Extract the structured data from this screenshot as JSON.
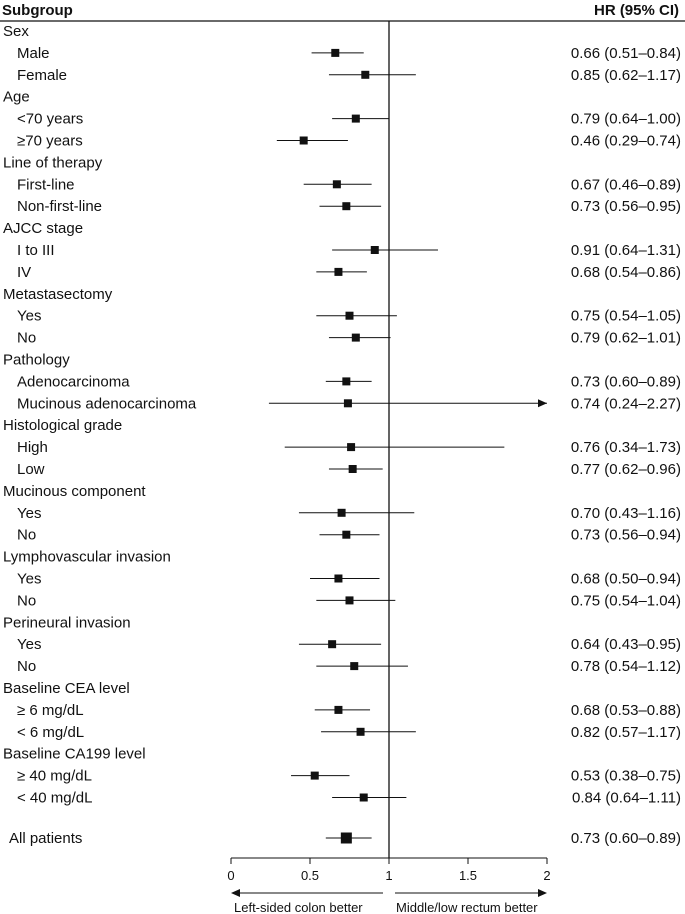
{
  "chart_data": {
    "type": "forest",
    "header": {
      "subgroup": "Subgroup",
      "hr": "HR (95% CI)"
    },
    "x_axis": {
      "min": 0,
      "max": 2,
      "reference": 1,
      "ticks": [
        "0",
        "0.5",
        "1",
        "1.5",
        "2"
      ]
    },
    "direction_labels": {
      "left": "Left-sided colon better",
      "right": "Middle/low rectum better"
    },
    "rows": [
      {
        "kind": "group",
        "label": "Sex"
      },
      {
        "kind": "item",
        "label": "Male",
        "hr": 0.66,
        "lo": 0.51,
        "hi": 0.84,
        "text": "0.66 (0.51–0.84)"
      },
      {
        "kind": "item",
        "label": "Female",
        "hr": 0.85,
        "lo": 0.62,
        "hi": 1.17,
        "text": "0.85 (0.62–1.17)"
      },
      {
        "kind": "group",
        "label": "Age"
      },
      {
        "kind": "item",
        "label": "<70 years",
        "hr": 0.79,
        "lo": 0.64,
        "hi": 1.0,
        "text": "0.79 (0.64–1.00)"
      },
      {
        "kind": "item",
        "label": "≥70 years",
        "hr": 0.46,
        "lo": 0.29,
        "hi": 0.74,
        "text": "0.46 (0.29–0.74)"
      },
      {
        "kind": "group",
        "label": "Line of therapy"
      },
      {
        "kind": "item",
        "label": "First-line",
        "hr": 0.67,
        "lo": 0.46,
        "hi": 0.89,
        "text": "0.67 (0.46–0.89)"
      },
      {
        "kind": "item",
        "label": "Non-first-line",
        "hr": 0.73,
        "lo": 0.56,
        "hi": 0.95,
        "text": "0.73 (0.56–0.95)"
      },
      {
        "kind": "group",
        "label": "AJCC stage"
      },
      {
        "kind": "item",
        "label": "I to III",
        "hr": 0.91,
        "lo": 0.64,
        "hi": 1.31,
        "text": "0.91 (0.64–1.31)"
      },
      {
        "kind": "item",
        "label": "IV",
        "hr": 0.68,
        "lo": 0.54,
        "hi": 0.86,
        "text": "0.68 (0.54–0.86)"
      },
      {
        "kind": "group",
        "label": "Metastasectomy"
      },
      {
        "kind": "item",
        "label": "Yes",
        "hr": 0.75,
        "lo": 0.54,
        "hi": 1.05,
        "text": "0.75 (0.54–1.05)"
      },
      {
        "kind": "item",
        "label": "No",
        "hr": 0.79,
        "lo": 0.62,
        "hi": 1.01,
        "text": "0.79 (0.62–1.01)"
      },
      {
        "kind": "group",
        "label": "Pathology"
      },
      {
        "kind": "item",
        "label": "Adenocarcinoma",
        "hr": 0.73,
        "lo": 0.6,
        "hi": 0.89,
        "text": "0.73 (0.60–0.89)"
      },
      {
        "kind": "item",
        "label": "Mucinous adenocarcinoma",
        "hr": 0.74,
        "lo": 0.24,
        "hi": 2.27,
        "text": "0.74 (0.24–2.27)"
      },
      {
        "kind": "group",
        "label": "Histological grade"
      },
      {
        "kind": "item",
        "label": "High",
        "hr": 0.76,
        "lo": 0.34,
        "hi": 1.73,
        "text": "0.76 (0.34–1.73)"
      },
      {
        "kind": "item",
        "label": "Low",
        "hr": 0.77,
        "lo": 0.62,
        "hi": 0.96,
        "text": "0.77 (0.62–0.96)"
      },
      {
        "kind": "group",
        "label": "Mucinous component"
      },
      {
        "kind": "item",
        "label": "Yes",
        "hr": 0.7,
        "lo": 0.43,
        "hi": 1.16,
        "text": "0.70 (0.43–1.16)"
      },
      {
        "kind": "item",
        "label": "No",
        "hr": 0.73,
        "lo": 0.56,
        "hi": 0.94,
        "text": "0.73 (0.56–0.94)"
      },
      {
        "kind": "group",
        "label": "Lymphovascular invasion"
      },
      {
        "kind": "item",
        "label": "Yes",
        "hr": 0.68,
        "lo": 0.5,
        "hi": 0.94,
        "text": "0.68 (0.50–0.94)"
      },
      {
        "kind": "item",
        "label": "No",
        "hr": 0.75,
        "lo": 0.54,
        "hi": 1.04,
        "text": "0.75 (0.54–1.04)"
      },
      {
        "kind": "group",
        "label": "Perineural invasion"
      },
      {
        "kind": "item",
        "label": "Yes",
        "hr": 0.64,
        "lo": 0.43,
        "hi": 0.95,
        "text": "0.64 (0.43–0.95)"
      },
      {
        "kind": "item",
        "label": "No",
        "hr": 0.78,
        "lo": 0.54,
        "hi": 1.12,
        "text": "0.78 (0.54–1.12)"
      },
      {
        "kind": "group",
        "label": "Baseline CEA level"
      },
      {
        "kind": "item",
        "label": "≥ 6 mg/dL",
        "hr": 0.68,
        "lo": 0.53,
        "hi": 0.88,
        "text": "0.68 (0.53–0.88)"
      },
      {
        "kind": "item",
        "label": "< 6 mg/dL",
        "hr": 0.82,
        "lo": 0.57,
        "hi": 1.17,
        "text": "0.82 (0.57–1.17)"
      },
      {
        "kind": "group",
        "label": "Baseline CA199 level"
      },
      {
        "kind": "item",
        "label": "≥ 40 mg/dL",
        "hr": 0.53,
        "lo": 0.38,
        "hi": 0.75,
        "text": "0.53 (0.38–0.75)"
      },
      {
        "kind": "item",
        "label": "< 40 mg/dL",
        "hr": 0.84,
        "lo": 0.64,
        "hi": 1.11,
        "text": "0.84 (0.64–1.11)"
      }
    ],
    "overall": {
      "label": "All patients",
      "hr": 0.73,
      "lo": 0.6,
      "hi": 0.89,
      "text": "0.73 (0.60–0.89)"
    }
  }
}
